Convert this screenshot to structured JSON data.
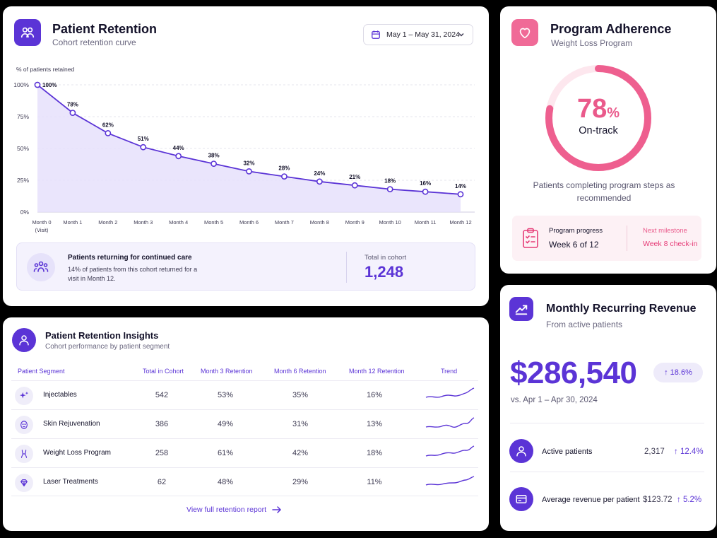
{
  "colors": {
    "accent": "#5b34d6",
    "pink": "#ea5a8b",
    "track": "#fde7ee",
    "area": "#e6e0fb"
  },
  "retention": {
    "icon": "people-icon",
    "title": "Patient Retention",
    "subtitle": "Cohort retention curve",
    "date_range": "May 1 – May 31, 2024",
    "summary": {
      "title": "Patients returning for continued care",
      "desc": "14% of patients from this cohort returned for a visit in Month 12.",
      "total_label": "Total in cohort",
      "total_value": "1,248"
    }
  },
  "chart_data": {
    "type": "line",
    "ylabel": "% of patients retained",
    "ylim": [
      0,
      100
    ],
    "y_ticks": [
      "0%",
      "25%",
      "50%",
      "75%",
      "100%"
    ],
    "categories": [
      "Month 0",
      "Month 1",
      "Month 2",
      "Month 3",
      "Month 4",
      "Month 5",
      "Month 6",
      "Month 7",
      "Month 8",
      "Month 9",
      "Month 10",
      "Month 11",
      "Month 12"
    ],
    "category_sublabels": [
      "(Visit)",
      "",
      "",
      "",
      "",
      "",
      "",
      "",
      "",
      "",
      "",
      "",
      ""
    ],
    "values": [
      100,
      78,
      62,
      51,
      44,
      38,
      32,
      28,
      24,
      21,
      18,
      16,
      14
    ],
    "data_labels": [
      "100%",
      "78%",
      "62%",
      "51%",
      "44%",
      "38%",
      "32%",
      "28%",
      "24%",
      "21%",
      "18%",
      "16%",
      "14%"
    ],
    "grid": true
  },
  "adherence": {
    "icon": "heart-icon",
    "title": "Program Adherence",
    "subtitle": "Weight Loss Program",
    "percent": 78,
    "value_num": "78",
    "value_unit": "%",
    "value_label": "On-track",
    "desc": "Patients completing program steps as recommended",
    "progress_label": "Program progress",
    "progress_value": "Week 6 of 12",
    "next_label": "Next milestone",
    "next_value": "Week 8 check-in"
  },
  "insights": {
    "icon": "person-icon",
    "title": "Patient Retention Insights",
    "subtitle": "Cohort performance by patient segment",
    "columns": [
      "Patient Segment",
      "Total in Cohort",
      "Month 3 Retention",
      "Month 6 Retention",
      "Month 12 Retention",
      "Trend"
    ],
    "rows": [
      {
        "icon": "sparkle-icon",
        "segment": "Injectables",
        "total": "542",
        "m3": "53%",
        "m6": "35%",
        "m12": "16%"
      },
      {
        "icon": "face-icon",
        "segment": "Skin Rejuvenation",
        "total": "386",
        "m3": "49%",
        "m6": "31%",
        "m12": "13%"
      },
      {
        "icon": "body-icon",
        "segment": "Weight Loss Program",
        "total": "258",
        "m3": "61%",
        "m6": "42%",
        "m12": "18%"
      },
      {
        "icon": "diamond-icon",
        "segment": "Laser Treatments",
        "total": "62",
        "m3": "48%",
        "m6": "29%",
        "m12": "11%"
      }
    ],
    "link": "View full retention report"
  },
  "mrr": {
    "icon": "trend-up-icon",
    "title": "Monthly Recurring Revenue",
    "subtitle": "From active patients",
    "value": "$286,540",
    "change": "↑ 18.6%",
    "compare": "vs. Apr 1 – Apr 30, 2024",
    "metrics": [
      {
        "icon": "user-icon",
        "label": "Active patients",
        "value": "2,317",
        "change": "↑ 12.4%"
      },
      {
        "icon": "card-icon",
        "label": "Average revenue per patient",
        "value": "$123.72",
        "change": "↑ 5.2%"
      }
    ]
  }
}
